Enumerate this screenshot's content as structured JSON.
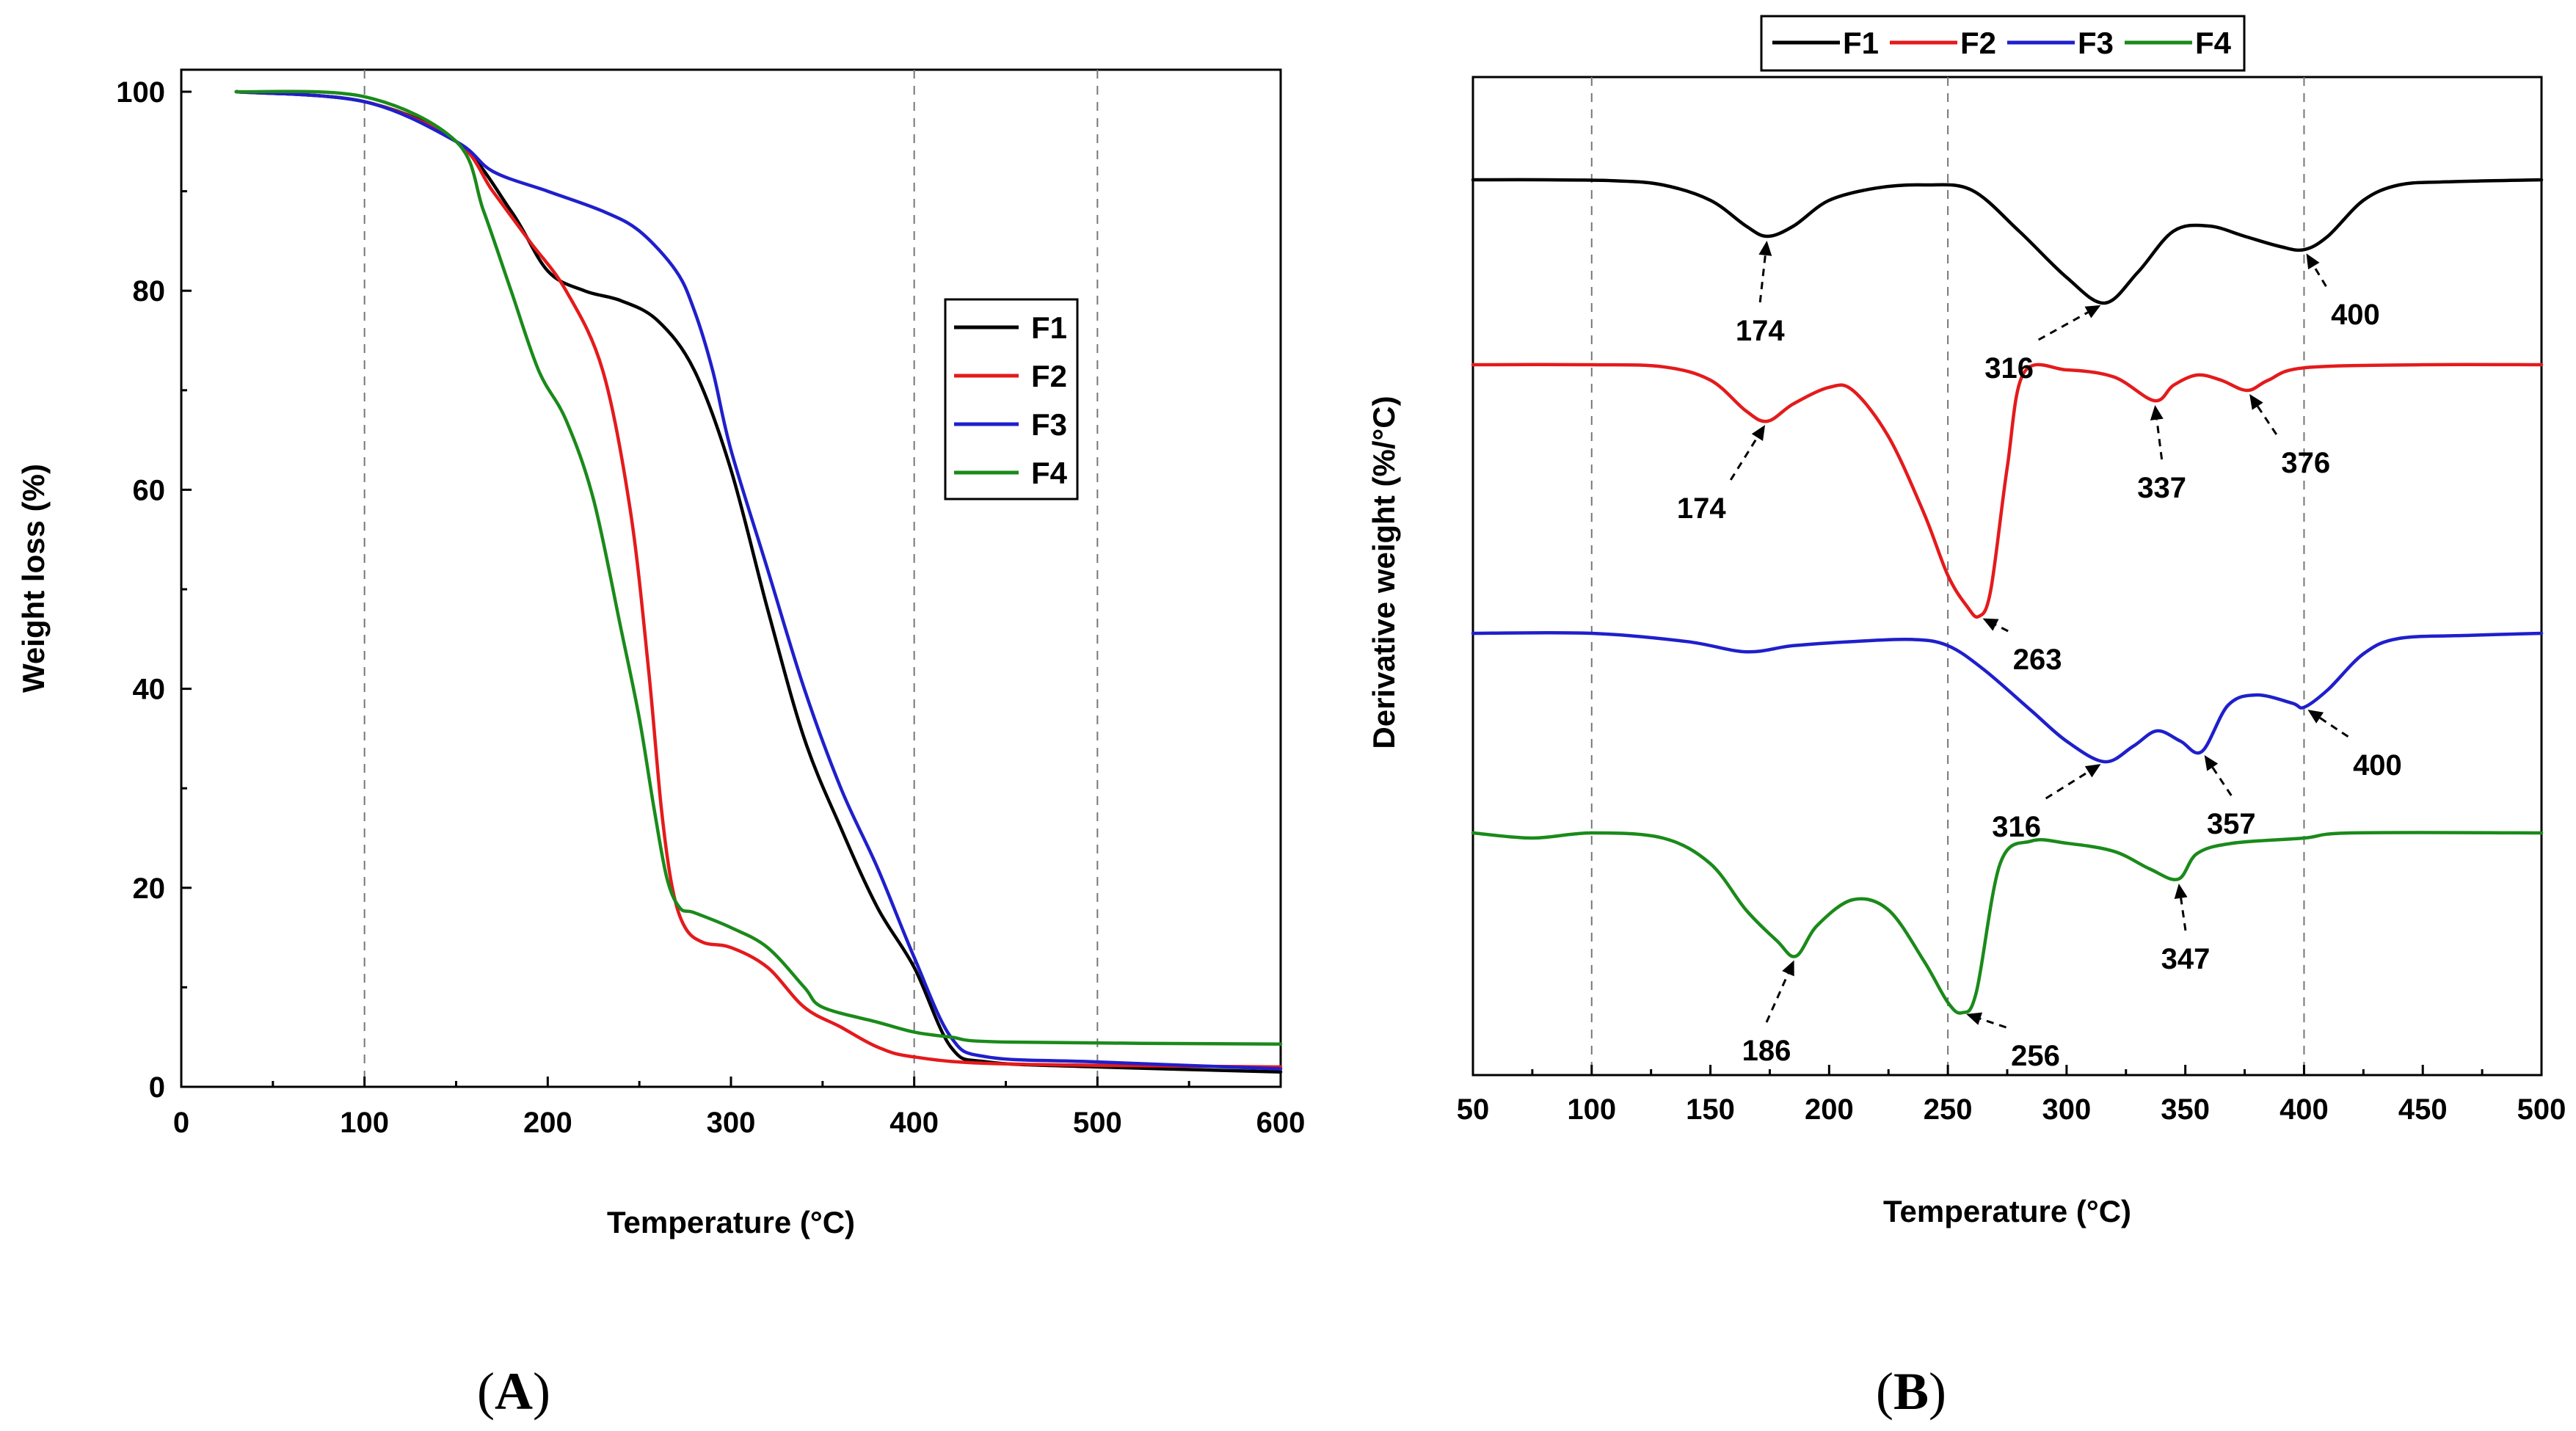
{
  "chart_data": [
    {
      "type": "line",
      "panel_label": "A",
      "xlabel": "Temperature (°C)",
      "ylabel": "Weight loss (%)",
      "xlim": [
        0,
        600
      ],
      "ylim": [
        0,
        100
      ],
      "xticks": [
        0,
        100,
        200,
        300,
        400,
        500,
        600
      ],
      "yticks": [
        0,
        20,
        40,
        60,
        80,
        100
      ],
      "gridlines_x": [
        100,
        400,
        500
      ],
      "legend_position": "center-right",
      "series": [
        {
          "name": "F1",
          "color": "#000000",
          "x": [
            30,
            100,
            150,
            180,
            200,
            220,
            240,
            260,
            280,
            300,
            320,
            340,
            360,
            380,
            400,
            420,
            440,
            500,
            600
          ],
          "y": [
            100,
            99,
            95,
            88,
            82,
            80,
            79,
            77,
            72,
            62,
            48,
            35,
            26,
            18,
            12,
            4,
            2.5,
            2,
            1.5
          ]
        },
        {
          "name": "F2",
          "color": "#e41a1c",
          "x": [
            30,
            100,
            150,
            170,
            190,
            210,
            230,
            245,
            255,
            262,
            268,
            275,
            285,
            300,
            320,
            340,
            360,
            380,
            400,
            450,
            600
          ],
          "y": [
            100,
            99,
            95,
            90,
            85,
            80,
            72,
            58,
            42,
            28,
            20,
            16,
            14.5,
            14,
            12,
            8,
            6,
            4,
            3,
            2.3,
            2
          ]
        },
        {
          "name": "F3",
          "color": "#1f1fcc",
          "x": [
            30,
            100,
            150,
            170,
            200,
            230,
            250,
            270,
            280,
            290,
            300,
            320,
            340,
            360,
            380,
            400,
            420,
            440,
            500,
            600
          ],
          "y": [
            100,
            99,
            95,
            92,
            90,
            88,
            86,
            82,
            78,
            72,
            64,
            52,
            40,
            30,
            22,
            13,
            5,
            3,
            2.5,
            1.8
          ]
        },
        {
          "name": "F4",
          "color": "#1a8a1a",
          "x": [
            30,
            100,
            150,
            165,
            180,
            195,
            210,
            225,
            240,
            250,
            258,
            265,
            272,
            280,
            300,
            320,
            340,
            350,
            380,
            400,
            420,
            450,
            600
          ],
          "y": [
            100,
            99.5,
            95,
            88,
            80,
            72,
            67,
            59,
            46,
            37,
            28,
            21,
            18,
            17.5,
            16,
            14,
            10,
            8,
            6.5,
            5.5,
            5,
            4.5,
            4.3
          ]
        }
      ]
    },
    {
      "type": "line",
      "panel_label": "B",
      "xlabel": "Temperature (°C)",
      "ylabel": "Derivative weight (%/°C)",
      "xlim": [
        50,
        500
      ],
      "xticks": [
        50,
        100,
        150,
        200,
        250,
        300,
        350,
        400,
        450,
        500
      ],
      "gridlines_x": [
        100,
        250,
        400
      ],
      "legend_position": "top",
      "series": [
        {
          "name": "F1",
          "color": "#000000",
          "x": [
            50,
            80,
            110,
            130,
            150,
            165,
            174,
            185,
            200,
            220,
            240,
            260,
            280,
            300,
            316,
            330,
            345,
            360,
            375,
            390,
            400,
            410,
            425,
            440,
            460,
            500
          ],
          "y": [
            0,
            0,
            -0.01,
            -0.05,
            -0.2,
            -0.45,
            -0.55,
            -0.45,
            -0.2,
            -0.08,
            -0.05,
            -0.1,
            -0.5,
            -0.95,
            -1.2,
            -0.9,
            -0.5,
            -0.45,
            -0.55,
            -0.65,
            -0.68,
            -0.55,
            -0.2,
            -0.05,
            -0.02,
            0
          ],
          "peaks": [
            {
              "x": 174,
              "label": "174"
            },
            {
              "x": 316,
              "label": "316"
            },
            {
              "x": 400,
              "label": "400"
            }
          ]
        },
        {
          "name": "F2",
          "color": "#e41a1c",
          "x": [
            50,
            100,
            130,
            150,
            165,
            174,
            185,
            200,
            210,
            225,
            240,
            250,
            258,
            263,
            268,
            275,
            282,
            300,
            320,
            337,
            345,
            355,
            365,
            376,
            385,
            400,
            450,
            500
          ],
          "y": [
            0,
            0,
            -0.02,
            -0.15,
            -0.45,
            -0.55,
            -0.38,
            -0.22,
            -0.25,
            -0.7,
            -1.45,
            -2.05,
            -2.35,
            -2.45,
            -2.2,
            -1.0,
            -0.08,
            -0.05,
            -0.12,
            -0.35,
            -0.2,
            -0.1,
            -0.15,
            -0.25,
            -0.15,
            -0.03,
            0,
            0
          ],
          "peaks": [
            {
              "x": 174,
              "label": "174"
            },
            {
              "x": 263,
              "label": "263"
            },
            {
              "x": 337,
              "label": "337"
            },
            {
              "x": 376,
              "label": "376"
            }
          ]
        },
        {
          "name": "F3",
          "color": "#1f1fcc",
          "x": [
            50,
            100,
            140,
            165,
            185,
            210,
            235,
            250,
            265,
            285,
            300,
            316,
            328,
            338,
            348,
            357,
            368,
            380,
            395,
            400,
            410,
            425,
            440,
            470,
            500
          ],
          "y": [
            0,
            0,
            -0.08,
            -0.18,
            -0.12,
            -0.08,
            -0.06,
            -0.12,
            -0.35,
            -0.75,
            -1.05,
            -1.25,
            -1.1,
            -0.95,
            -1.05,
            -1.15,
            -0.7,
            -0.6,
            -0.68,
            -0.72,
            -0.55,
            -0.2,
            -0.05,
            -0.02,
            0
          ],
          "peaks": [
            {
              "x": 316,
              "label": "316"
            },
            {
              "x": 357,
              "label": "357"
            },
            {
              "x": 400,
              "label": "400"
            }
          ]
        },
        {
          "name": "F4",
          "color": "#1a8a1a",
          "x": [
            50,
            75,
            100,
            130,
            150,
            165,
            178,
            186,
            195,
            210,
            225,
            240,
            250,
            256,
            262,
            272,
            285,
            300,
            320,
            335,
            347,
            355,
            370,
            400,
            420,
            500
          ],
          "y": [
            0,
            -0.05,
            0,
            -0.05,
            -0.3,
            -0.75,
            -1.05,
            -1.2,
            -0.9,
            -0.65,
            -0.75,
            -1.25,
            -1.65,
            -1.75,
            -1.55,
            -0.3,
            -0.08,
            -0.1,
            -0.18,
            -0.35,
            -0.45,
            -0.2,
            -0.1,
            -0.05,
            0,
            0
          ],
          "peaks": [
            {
              "x": 186,
              "label": "186"
            },
            {
              "x": 256,
              "label": "256"
            },
            {
              "x": 347,
              "label": "347"
            }
          ]
        }
      ]
    }
  ]
}
